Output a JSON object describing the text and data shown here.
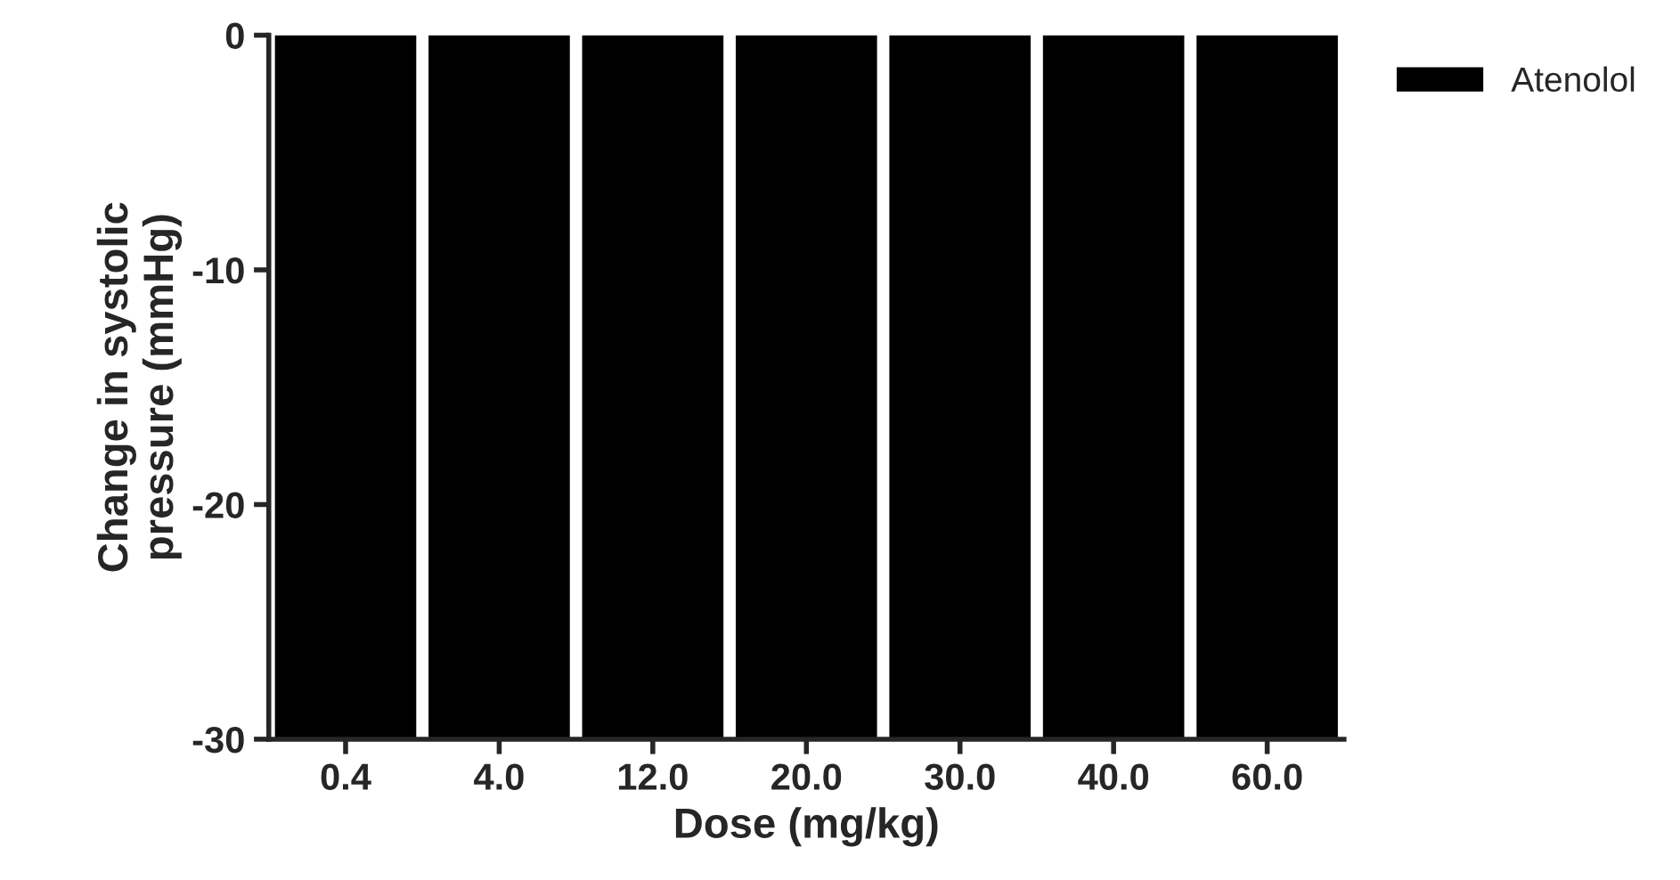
{
  "chart_data": {
    "type": "bar",
    "xlabel": "Dose (mg/kg)",
    "ylabel": "Change in systolic\npressure (mmHg)",
    "categories": [
      "0.4",
      "4.0",
      "12.0",
      "20.0",
      "30.0",
      "40.0",
      "60.0"
    ],
    "series": [
      {
        "name": "Atenolol",
        "color": "#000000",
        "values": [
          -30,
          -30,
          -30,
          -30,
          -30,
          -30,
          -30
        ]
      }
    ],
    "ylim": [
      -30,
      0
    ],
    "yticks": [
      -30,
      -20,
      -10,
      0
    ],
    "grid": false,
    "legend": "top right"
  }
}
